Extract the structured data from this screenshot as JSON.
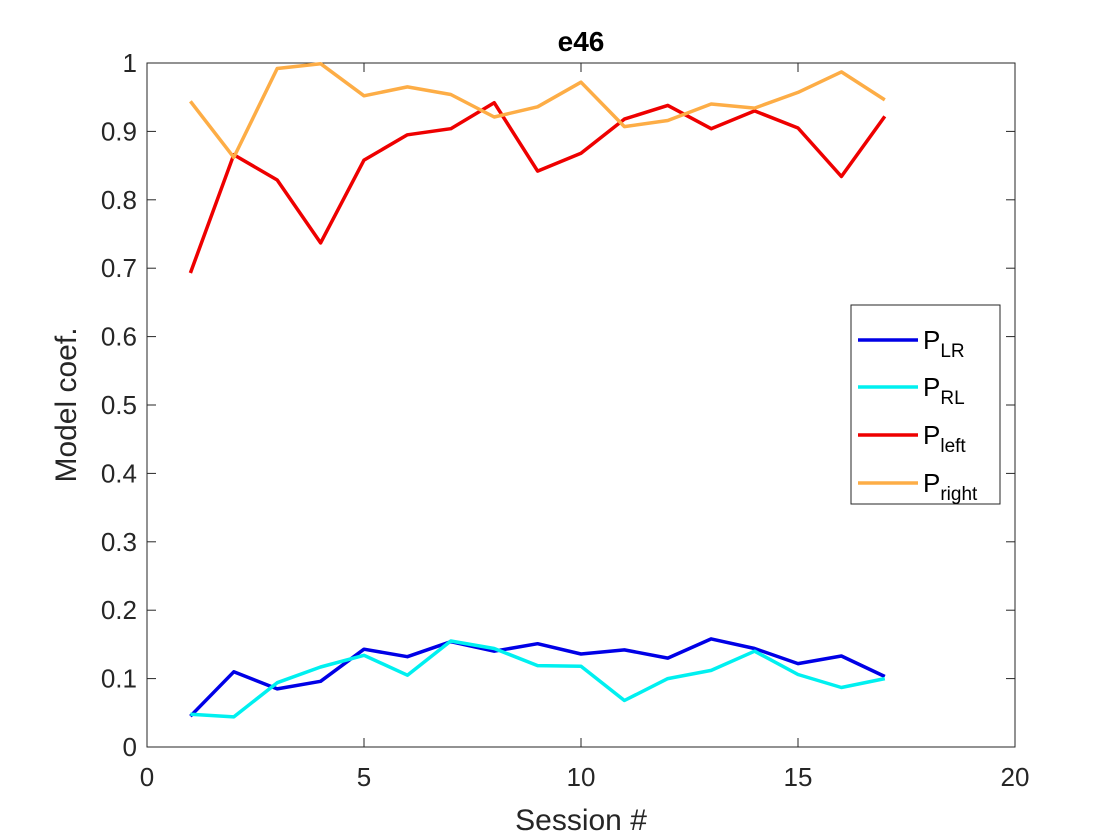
{
  "chart_data": {
    "type": "line",
    "title": "e46",
    "xlabel": "Session #",
    "ylabel": "Model coef.",
    "xlim": [
      0,
      20
    ],
    "ylim": [
      0,
      1
    ],
    "xticks": [
      0,
      5,
      10,
      15,
      20
    ],
    "xtick_labels": [
      "0",
      "5",
      "10",
      "15",
      "20"
    ],
    "yticks": [
      0,
      0.1,
      0.2,
      0.3,
      0.4,
      0.5,
      0.6,
      0.7,
      0.8,
      0.9,
      1
    ],
    "ytick_labels": [
      "0",
      "0.1",
      "0.2",
      "0.3",
      "0.4",
      "0.5",
      "0.6",
      "0.7",
      "0.8",
      "0.9",
      "1"
    ],
    "grid": false,
    "legend_position": "right",
    "x": [
      1,
      2,
      3,
      4,
      5,
      6,
      7,
      8,
      9,
      10,
      11,
      12,
      13,
      14,
      15,
      16,
      17
    ],
    "series": [
      {
        "name": "P",
        "subscript": "LR",
        "color": "#0000e6",
        "values": [
          0.045,
          0.11,
          0.085,
          0.096,
          0.143,
          0.132,
          0.154,
          0.14,
          0.151,
          0.136,
          0.142,
          0.13,
          0.158,
          0.144,
          0.122,
          0.133,
          0.103
        ]
      },
      {
        "name": "P",
        "subscript": "RL",
        "color": "#00f0f0",
        "values": [
          0.048,
          0.044,
          0.094,
          0.117,
          0.134,
          0.105,
          0.155,
          0.144,
          0.119,
          0.118,
          0.068,
          0.1,
          0.112,
          0.14,
          0.106,
          0.087,
          0.1
        ]
      },
      {
        "name": "P",
        "subscript": "left",
        "color": "#ee0000",
        "values": [
          0.693,
          0.866,
          0.829,
          0.737,
          0.858,
          0.895,
          0.904,
          0.942,
          0.842,
          0.868,
          0.918,
          0.938,
          0.904,
          0.93,
          0.905,
          0.834,
          0.922
        ]
      },
      {
        "name": "P",
        "subscript": "right",
        "color": "#fdad46",
        "values": [
          0.944,
          0.862,
          0.992,
          0.999,
          0.952,
          0.965,
          0.954,
          0.921,
          0.936,
          0.972,
          0.907,
          0.916,
          0.94,
          0.934,
          0.957,
          0.987,
          0.946
        ]
      }
    ]
  }
}
